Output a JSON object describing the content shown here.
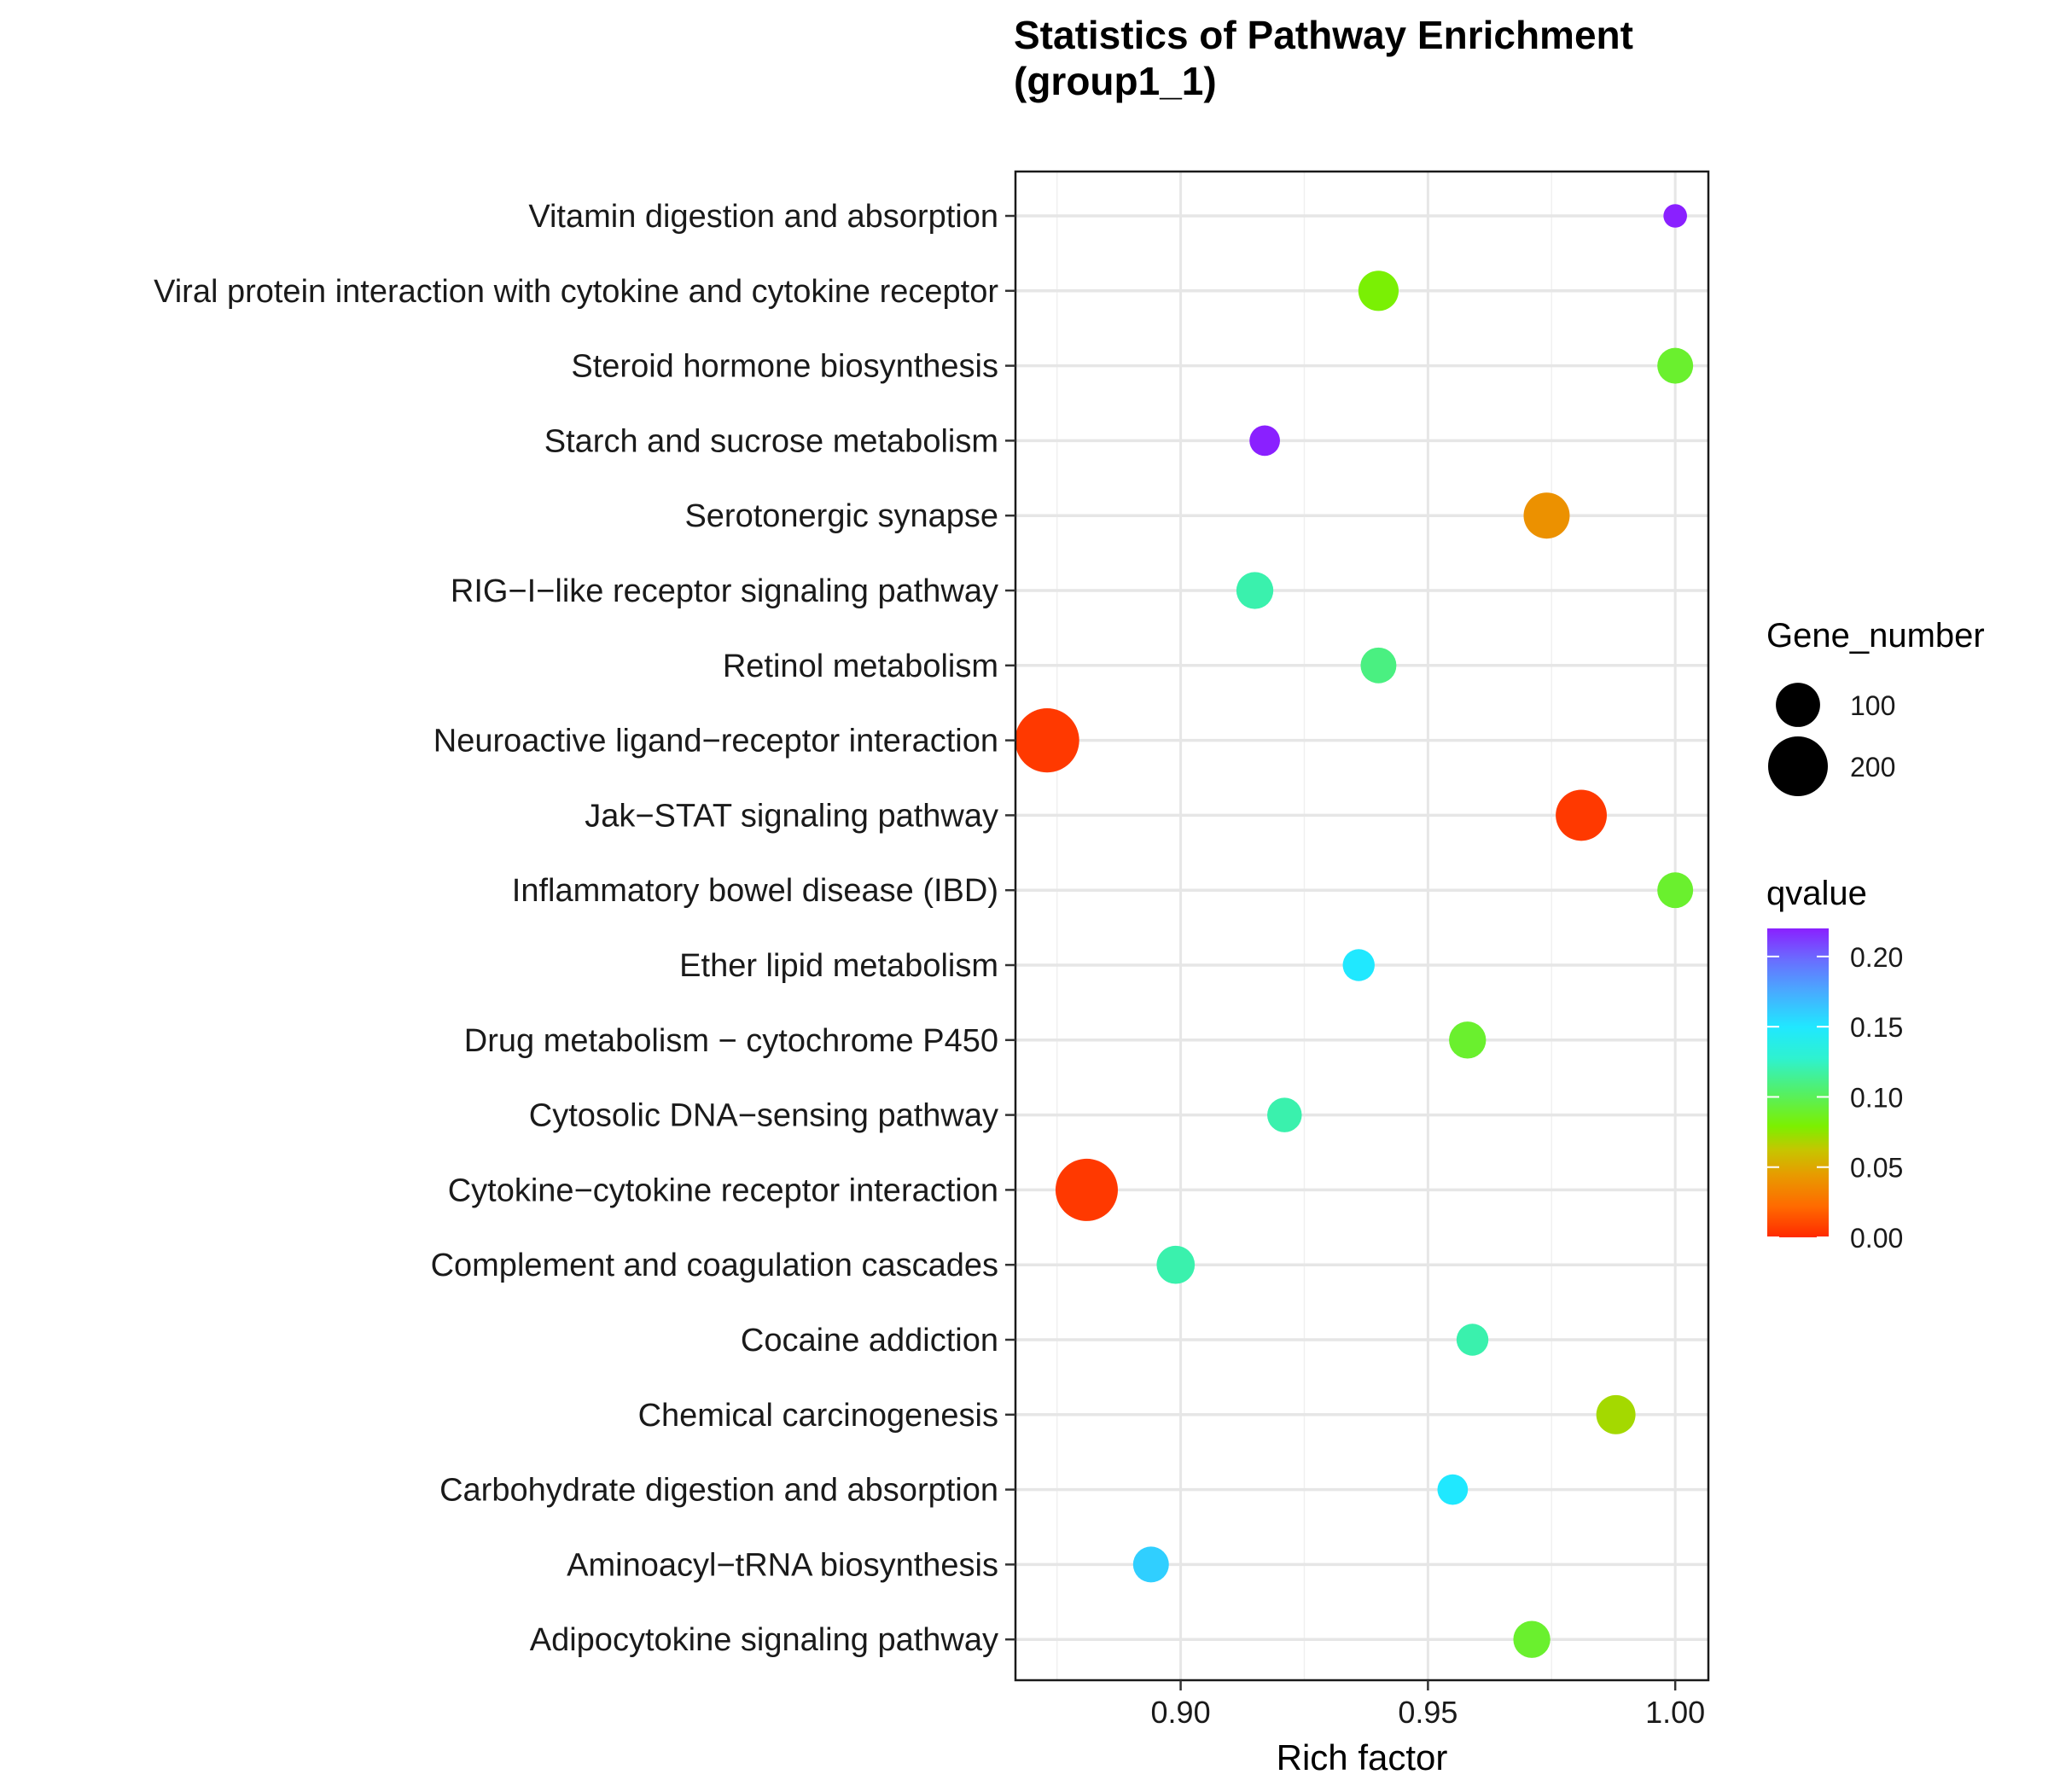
{
  "chart_data": {
    "type": "scatter",
    "title": "Statistics of Pathway Enrichment",
    "subtitle": "(group1_1)",
    "xlabel": "Rich factor",
    "ylabel": "",
    "xlim": [
      0.8666,
      1.0067
    ],
    "xticks": [
      "0.90",
      "0.95",
      "1.00"
    ],
    "categories": [
      "Vitamin digestion and absorption",
      "Viral protein interaction with cytokine and cytokine receptor",
      "Steroid hormone biosynthesis",
      "Starch and sucrose metabolism",
      "Serotonergic synapse",
      "RIG−I−like receptor signaling pathway",
      "Retinol metabolism",
      "Neuroactive ligand−receptor interaction",
      "Jak−STAT signaling pathway",
      "Inflammatory bowel disease (IBD)",
      "Ether lipid metabolism",
      "Drug metabolism − cytochrome P450",
      "Cytosolic DNA−sensing pathway",
      "Cytokine−cytokine receptor interaction",
      "Complement and coagulation cascades",
      "Cocaine addiction",
      "Chemical carcinogenesis",
      "Carbohydrate digestion and absorption",
      "Aminoacyl−tRNA biosynthesis",
      "Adipocytokine signaling pathway"
    ],
    "points": [
      {
        "x": 1.0,
        "gene_number": 20,
        "qvalue": 0.22
      },
      {
        "x": 0.94,
        "gene_number": 80,
        "qvalue": 0.08
      },
      {
        "x": 1.0,
        "gene_number": 60,
        "qvalue": 0.09
      },
      {
        "x": 0.917,
        "gene_number": 40,
        "qvalue": 0.22
      },
      {
        "x": 0.974,
        "gene_number": 110,
        "qvalue": 0.04
      },
      {
        "x": 0.915,
        "gene_number": 65,
        "qvalue": 0.12
      },
      {
        "x": 0.94,
        "gene_number": 60,
        "qvalue": 0.11
      },
      {
        "x": 0.873,
        "gene_number": 235,
        "qvalue": 0.005
      },
      {
        "x": 0.981,
        "gene_number": 140,
        "qvalue": 0.005
      },
      {
        "x": 1.0,
        "gene_number": 60,
        "qvalue": 0.09
      },
      {
        "x": 0.936,
        "gene_number": 45,
        "qvalue": 0.15
      },
      {
        "x": 0.958,
        "gene_number": 65,
        "qvalue": 0.09
      },
      {
        "x": 0.921,
        "gene_number": 55,
        "qvalue": 0.12
      },
      {
        "x": 0.881,
        "gene_number": 220,
        "qvalue": 0.005
      },
      {
        "x": 0.899,
        "gene_number": 70,
        "qvalue": 0.12
      },
      {
        "x": 0.959,
        "gene_number": 45,
        "qvalue": 0.12
      },
      {
        "x": 0.988,
        "gene_number": 75,
        "qvalue": 0.07
      },
      {
        "x": 0.955,
        "gene_number": 40,
        "qvalue": 0.15
      },
      {
        "x": 0.894,
        "gene_number": 60,
        "qvalue": 0.16
      },
      {
        "x": 0.971,
        "gene_number": 65,
        "qvalue": 0.09
      }
    ],
    "size_legend": {
      "title": "Gene_number",
      "entries": [
        {
          "label": "100",
          "value": 100
        },
        {
          "label": "200",
          "value": 200
        }
      ]
    },
    "color_legend": {
      "title": "qvalue",
      "ticks": [
        {
          "label": "0.00",
          "value": 0.0
        },
        {
          "label": "0.05",
          "value": 0.05
        },
        {
          "label": "0.10",
          "value": 0.1
        },
        {
          "label": "0.15",
          "value": 0.15
        },
        {
          "label": "0.20",
          "value": 0.2
        }
      ],
      "range": [
        0.0,
        0.22
      ]
    },
    "grid": true,
    "legend_position": "right"
  }
}
